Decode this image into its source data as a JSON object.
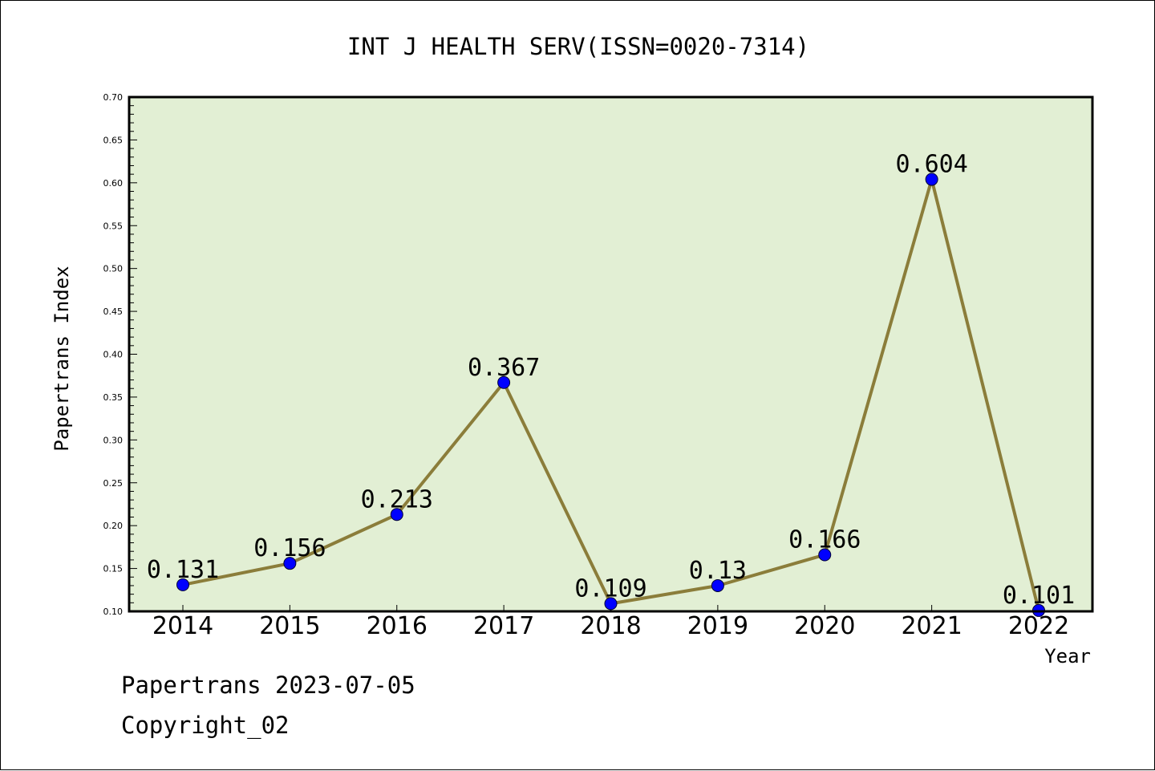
{
  "chart_data": {
    "type": "line",
    "title": "INT J HEALTH SERV(ISSN=0020-7314)",
    "xlabel": "Year",
    "ylabel": "Papertrans Index",
    "categories": [
      "2014",
      "2015",
      "2016",
      "2017",
      "2018",
      "2019",
      "2020",
      "2021",
      "2022"
    ],
    "series": [
      {
        "values": [
          0.131,
          0.156,
          0.213,
          0.367,
          0.109,
          0.13,
          0.166,
          0.604,
          0.101
        ],
        "labels": [
          "0.131",
          "0.156",
          "0.213",
          "0.367",
          "0.109",
          "0.13",
          "0.166",
          "0.604",
          "0.101"
        ]
      }
    ],
    "ylim": [
      0.1,
      0.7
    ],
    "yticks": [
      "0.10",
      "0.15",
      "0.20",
      "0.25",
      "0.30",
      "0.35",
      "0.40",
      "0.45",
      "0.50",
      "0.55",
      "0.60",
      "0.65",
      "0.70"
    ],
    "grid": false,
    "legend": "none",
    "colors": {
      "plot_background": "#e2efd4",
      "line": "#8b7d3a",
      "marker": "#0000ff",
      "axis": "#000000"
    }
  },
  "footer": {
    "line1": "Papertrans 2023-07-05",
    "line2": "Copyright_02"
  }
}
